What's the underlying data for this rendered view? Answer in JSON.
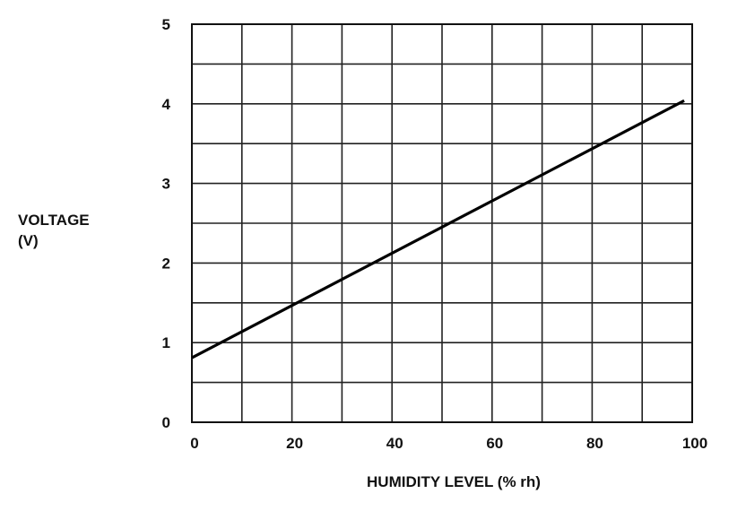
{
  "chart_data": {
    "type": "line",
    "title": "",
    "xlabel": "HUMIDITY LEVEL (% rh)",
    "ylabel": [
      "VOLTAGE",
      "(V)"
    ],
    "xlim": [
      0,
      100
    ],
    "ylim": [
      0,
      5
    ],
    "x_ticks": [
      0,
      20,
      40,
      60,
      80,
      100
    ],
    "y_ticks": [
      0,
      1,
      2,
      3,
      4,
      5
    ],
    "grid": true,
    "grid_x_step": 10,
    "grid_y_step": 0.5,
    "series": [
      {
        "x": [
          0,
          98.4
        ],
        "y": [
          0.81,
          4.04
        ]
      }
    ]
  }
}
